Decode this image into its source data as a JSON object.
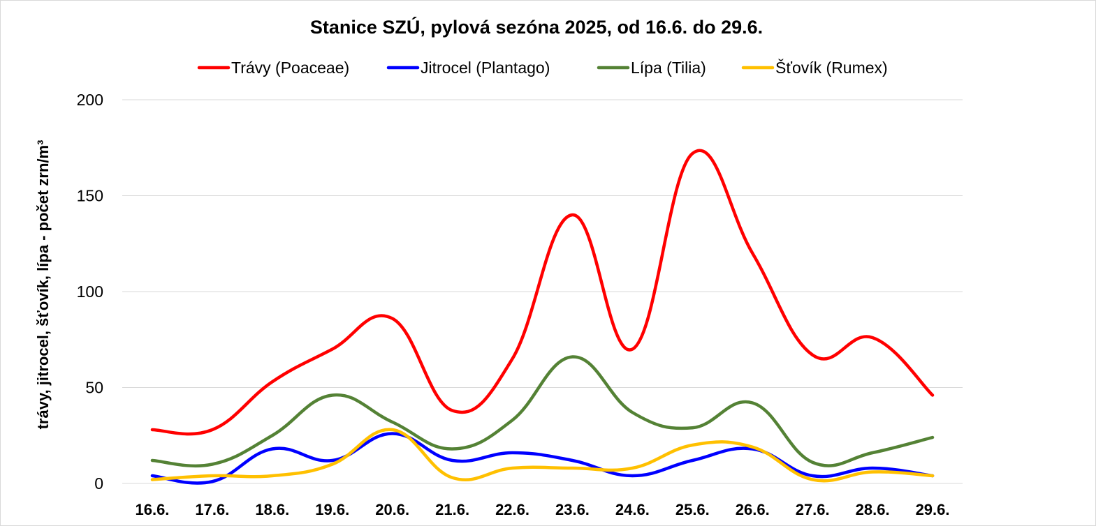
{
  "chart_data": {
    "type": "line",
    "title": "Stanice SZÚ, pylová sezóna 2025, od 16.6. do 29.6.",
    "ylabel": "trávy, jitrocel, šťovík, lípa - počet zrn/m³",
    "xlabel": "",
    "categories": [
      "16.6.",
      "17.6.",
      "18.6.",
      "19.6.",
      "20.6.",
      "21.6.",
      "22.6.",
      "23.6.",
      "24.6.",
      "25.6.",
      "26.6.",
      "27.6.",
      "28.6.",
      "29.6."
    ],
    "ylim": [
      0,
      200
    ],
    "yticks": [
      "0",
      "50",
      "100",
      "150",
      "200"
    ],
    "grid": true,
    "legend_position": "top",
    "series": [
      {
        "name": "Trávy (Poaceae)",
        "color": "#ff0000",
        "values": [
          28,
          28,
          53,
          70,
          86,
          38,
          65,
          140,
          70,
          172,
          120,
          67,
          76,
          46
        ]
      },
      {
        "name": "Jitrocel (Plantago)",
        "color": "#0000ff",
        "values": [
          4,
          1,
          18,
          12,
          26,
          12,
          16,
          12,
          4,
          12,
          18,
          4,
          8,
          4
        ]
      },
      {
        "name": "Lípa (Tilia)",
        "color": "#548235",
        "values": [
          12,
          10,
          25,
          46,
          32,
          18,
          33,
          66,
          37,
          29,
          42,
          11,
          16,
          24
        ]
      },
      {
        "name": "Šťovík (Rumex)",
        "color": "#ffc000",
        "values": [
          2,
          4,
          4,
          10,
          28,
          3,
          8,
          8,
          8,
          20,
          19,
          2,
          6,
          4
        ]
      }
    ]
  }
}
